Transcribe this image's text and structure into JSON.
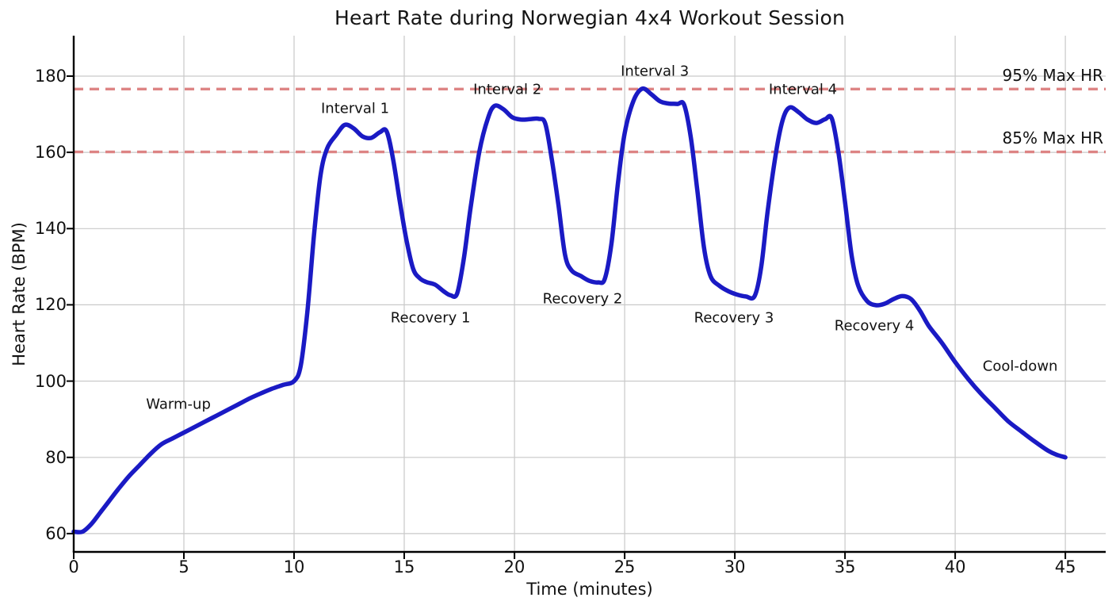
{
  "chart_data": {
    "type": "line",
    "title": "Heart Rate during Norwegian 4x4 Workout Session",
    "xlabel": "Time (minutes)",
    "ylabel": "Heart Rate (BPM)",
    "xticks": [
      0,
      5,
      10,
      15,
      20,
      25,
      30,
      35,
      40,
      45
    ],
    "yticks": [
      60,
      80,
      100,
      120,
      140,
      160,
      180
    ],
    "xlim": [
      0,
      46.83
    ],
    "ylim": [
      55.2,
      190.6
    ],
    "grid": true,
    "grid_color": "#c9c9c9",
    "background": "#ffffff",
    "series": [
      {
        "name": "Heart Rate",
        "color": "#1a1ac4",
        "points": [
          [
            0,
            60.5
          ],
          [
            0.4,
            60.5
          ],
          [
            0.8,
            62.5
          ],
          [
            1.2,
            65.5
          ],
          [
            1.6,
            68.5
          ],
          [
            2,
            71.5
          ],
          [
            2.5,
            75
          ],
          [
            3,
            78
          ],
          [
            3.5,
            81
          ],
          [
            4,
            83.5
          ],
          [
            4.5,
            85
          ],
          [
            5,
            86.5
          ],
          [
            5.5,
            88
          ],
          [
            6,
            89.5
          ],
          [
            6.5,
            91
          ],
          [
            7,
            92.5
          ],
          [
            7.5,
            94
          ],
          [
            8,
            95.5
          ],
          [
            8.5,
            96.8
          ],
          [
            9,
            98
          ],
          [
            9.5,
            99
          ],
          [
            10,
            100
          ],
          [
            10.3,
            104
          ],
          [
            10.6,
            118
          ],
          [
            10.9,
            138
          ],
          [
            11.2,
            154
          ],
          [
            11.5,
            161
          ],
          [
            11.9,
            164.5
          ],
          [
            12.3,
            167.2
          ],
          [
            12.7,
            166.3
          ],
          [
            13.1,
            164.2
          ],
          [
            13.5,
            163.8
          ],
          [
            13.9,
            165.3
          ],
          [
            14.2,
            165.5
          ],
          [
            14.5,
            158
          ],
          [
            14.8,
            147
          ],
          [
            15.1,
            137
          ],
          [
            15.4,
            129.5
          ],
          [
            15.7,
            127
          ],
          [
            16,
            126
          ],
          [
            16.4,
            125.3
          ],
          [
            16.8,
            123.5
          ],
          [
            17.1,
            122.5
          ],
          [
            17.4,
            123
          ],
          [
            17.7,
            132
          ],
          [
            18,
            145
          ],
          [
            18.4,
            160
          ],
          [
            18.8,
            169
          ],
          [
            19.1,
            172.2
          ],
          [
            19.5,
            171.3
          ],
          [
            19.9,
            169.2
          ],
          [
            20.3,
            168.6
          ],
          [
            20.7,
            168.7
          ],
          [
            21.1,
            168.8
          ],
          [
            21.4,
            167.5
          ],
          [
            21.7,
            158
          ],
          [
            22,
            146
          ],
          [
            22.3,
            133
          ],
          [
            22.6,
            129
          ],
          [
            23,
            127.6
          ],
          [
            23.4,
            126.3
          ],
          [
            23.8,
            125.9
          ],
          [
            24.1,
            126.8
          ],
          [
            24.4,
            136
          ],
          [
            24.7,
            152
          ],
          [
            25,
            165
          ],
          [
            25.4,
            173.5
          ],
          [
            25.8,
            176.7
          ],
          [
            26.2,
            175.3
          ],
          [
            26.6,
            173.4
          ],
          [
            27,
            172.8
          ],
          [
            27.4,
            172.7
          ],
          [
            27.7,
            172.5
          ],
          [
            28,
            164
          ],
          [
            28.3,
            150
          ],
          [
            28.6,
            135
          ],
          [
            28.9,
            127.5
          ],
          [
            29.3,
            125
          ],
          [
            29.7,
            123.6
          ],
          [
            30.1,
            122.7
          ],
          [
            30.5,
            122.2
          ],
          [
            30.9,
            122.3
          ],
          [
            31.2,
            130
          ],
          [
            31.5,
            145
          ],
          [
            31.9,
            161
          ],
          [
            32.2,
            169
          ],
          [
            32.5,
            171.8
          ],
          [
            32.9,
            170.5
          ],
          [
            33.3,
            168.6
          ],
          [
            33.7,
            167.7
          ],
          [
            34.1,
            168.7
          ],
          [
            34.4,
            168.9
          ],
          [
            34.7,
            160
          ],
          [
            35,
            147
          ],
          [
            35.3,
            133
          ],
          [
            35.6,
            125
          ],
          [
            36,
            121
          ],
          [
            36.4,
            119.9
          ],
          [
            36.8,
            120.3
          ],
          [
            37.2,
            121.5
          ],
          [
            37.6,
            122.3
          ],
          [
            38,
            121.5
          ],
          [
            38.4,
            118.5
          ],
          [
            38.8,
            114.5
          ],
          [
            39.4,
            110
          ],
          [
            40,
            105
          ],
          [
            40.6,
            100.5
          ],
          [
            41.2,
            96.5
          ],
          [
            41.8,
            93
          ],
          [
            42.4,
            89.5
          ],
          [
            43,
            86.8
          ],
          [
            43.6,
            84.2
          ],
          [
            44.2,
            81.8
          ],
          [
            44.6,
            80.7
          ],
          [
            45,
            80
          ]
        ]
      }
    ],
    "reference_lines": [
      {
        "label": "95% Max HR",
        "value": 176.6,
        "color": "#dd8484",
        "style": "dashed"
      },
      {
        "label": "85% Max HR",
        "value": 160.1,
        "color": "#dd8484",
        "style": "dashed"
      }
    ],
    "annotations": [
      {
        "label": "Warm-up",
        "x": 4.75,
        "y": 93.9
      },
      {
        "label": "Interval 1",
        "x": 12.77,
        "y": 171.5
      },
      {
        "label": "Recovery 1",
        "x": 16.19,
        "y": 116.6
      },
      {
        "label": "Interval 2",
        "x": 19.68,
        "y": 176.5
      },
      {
        "label": "Recovery 2",
        "x": 23.09,
        "y": 121.6
      },
      {
        "label": "Interval 3",
        "x": 26.37,
        "y": 181.2
      },
      {
        "label": "Recovery 3",
        "x": 29.96,
        "y": 116.6
      },
      {
        "label": "Interval 4",
        "x": 33.09,
        "y": 176.5
      },
      {
        "label": "Recovery 4",
        "x": 36.33,
        "y": 114.5
      },
      {
        "label": "Cool-down",
        "x": 42.95,
        "y": 103.9
      }
    ]
  }
}
